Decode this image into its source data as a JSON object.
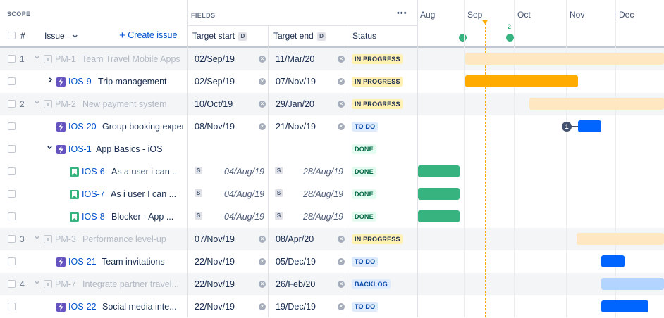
{
  "header": {
    "scope_label": "SCOPE",
    "fields_label": "FIELDS",
    "more_label": "•••",
    "hash_label": "#",
    "issue_label": "Issue",
    "create_issue_label": "Create issue",
    "target_start_label": "Target start",
    "target_end_label": "Target end",
    "status_label": "Status",
    "date_hint": "D"
  },
  "timeline": {
    "months": [
      "Aug",
      "Sep",
      "Oct",
      "Nov",
      "Dec"
    ],
    "milestone_count": "2"
  },
  "rows": [
    {
      "num": "1",
      "key": "PM-1",
      "title": "Team Travel Mobile Apps",
      "start": "02/Sep/19",
      "end": "11/Mar/20",
      "status": "IN PROGRESS"
    },
    {
      "num": "",
      "key": "IOS-9",
      "title": "Trip management",
      "start": "02/Sep/19",
      "end": "07/Nov/19",
      "status": "IN PROGRESS"
    },
    {
      "num": "2",
      "key": "PM-2",
      "title": "New payment system",
      "start": "10/Oct/19",
      "end": "29/Jan/20",
      "status": "IN PROGRESS"
    },
    {
      "num": "",
      "key": "IOS-20",
      "title": "Group booking exper",
      "start": "08/Nov/19",
      "end": "21/Nov/19",
      "status": "TO DO",
      "dependency": "1"
    },
    {
      "num": "",
      "key": "IOS-1",
      "title": "App Basics - iOS",
      "start": "",
      "end": "",
      "status": "DONE"
    },
    {
      "num": "",
      "key": "IOS-6",
      "title": "As a user i can ...",
      "start": "04/Aug/19",
      "end": "28/Aug/19",
      "status": "DONE",
      "start_badge": "S",
      "end_badge": "S"
    },
    {
      "num": "",
      "key": "IOS-7",
      "title": "As i user I can ...",
      "start": "04/Aug/19",
      "end": "28/Aug/19",
      "status": "DONE",
      "start_badge": "S",
      "end_badge": "S"
    },
    {
      "num": "",
      "key": "IOS-8",
      "title": "Blocker - App ...",
      "start": "04/Aug/19",
      "end": "28/Aug/19",
      "status": "DONE",
      "start_badge": "S",
      "end_badge": "S"
    },
    {
      "num": "3",
      "key": "PM-3",
      "title": "Performance level-up",
      "start": "07/Nov/19",
      "end": "08/Apr/20",
      "status": "IN PROGRESS"
    },
    {
      "num": "",
      "key": "IOS-21",
      "title": "Team invitations",
      "start": "22/Nov/19",
      "end": "05/Dec/19",
      "status": "TO DO"
    },
    {
      "num": "4",
      "key": "PM-7",
      "title": "Integrate partner travel...",
      "start": "22/Nov/19",
      "end": "26/Feb/20",
      "status": "BACKLOG"
    },
    {
      "num": "",
      "key": "IOS-22",
      "title": "Social media inte...",
      "start": "22/Nov/19",
      "end": "19/Dec/19",
      "status": "TO DO"
    }
  ],
  "colors": {
    "link": "#0052CC",
    "in_progress_bar": "#FFAB00",
    "done_bar": "#36B37E",
    "todo_bar": "#0065FF",
    "today_line": "#FFAB00"
  }
}
